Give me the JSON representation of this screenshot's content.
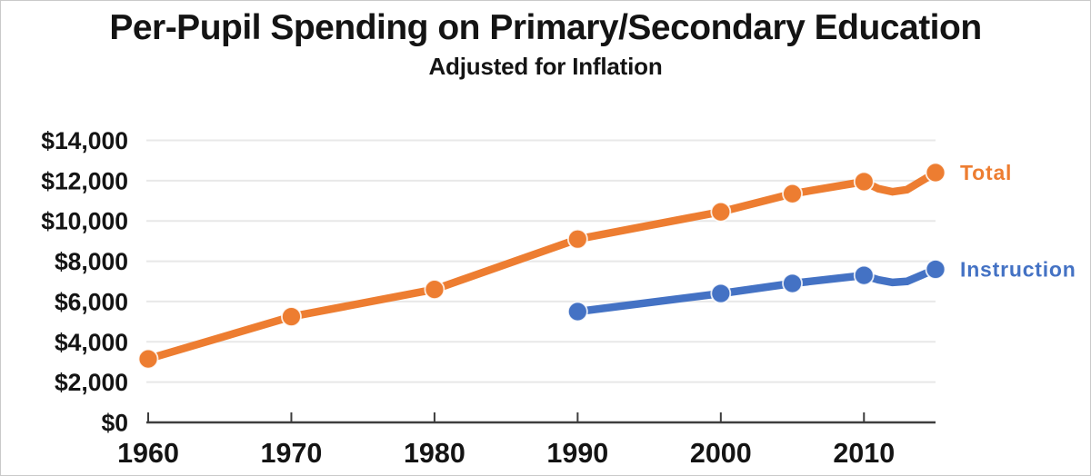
{
  "page": {
    "title": "Per-Pupil Spending on Primary/Secondary Education",
    "subtitle": "Adjusted for Inflation"
  },
  "colors": {
    "total_orange": "#ED7D31",
    "instruction_blue": "#4472C4",
    "grid": "#E8E8E8",
    "axis": "#3D3D3D",
    "text": "#141414"
  },
  "chart_data": {
    "type": "line",
    "title": "Per-Pupil Spending on Primary/Secondary Education",
    "subtitle": "Adjusted for Inflation",
    "xlabel": "",
    "ylabel": "",
    "x_range": [
      1960,
      2015
    ],
    "ylim": [
      0,
      14000
    ],
    "y_tick_step": 2000,
    "y_tick_values": [
      0,
      2000,
      4000,
      6000,
      8000,
      10000,
      12000,
      14000
    ],
    "y_tick_labels": [
      "$0",
      "$2,000",
      "$4,000",
      "$6,000",
      "$8,000",
      "$10,000",
      "$12,000",
      "$14,000"
    ],
    "x_tick_years": [
      1960,
      1970,
      1980,
      1990,
      2000,
      2010
    ],
    "x_tick_labels": [
      "1960",
      "1970",
      "1980",
      "1990",
      "2000",
      "2010"
    ],
    "grid": true,
    "legend_position": "right-of-line-end",
    "series": [
      {
        "name": "Total",
        "color": "#ED7D31",
        "points": [
          [
            1960,
            3150
          ],
          [
            1970,
            5250
          ],
          [
            1980,
            6600
          ],
          [
            1990,
            9100
          ],
          [
            2000,
            10450
          ],
          [
            2005,
            11350
          ],
          [
            2010,
            11950
          ],
          [
            2011,
            11600
          ],
          [
            2012,
            11450
          ],
          [
            2013,
            11550
          ],
          [
            2015,
            12400
          ]
        ],
        "marker_years": [
          1960,
          1970,
          1980,
          1990,
          2000,
          2005,
          2010,
          2015
        ]
      },
      {
        "name": "Instruction",
        "color": "#4472C4",
        "points": [
          [
            1990,
            5500
          ],
          [
            2000,
            6400
          ],
          [
            2005,
            6900
          ],
          [
            2010,
            7300
          ],
          [
            2011,
            7080
          ],
          [
            2012,
            6950
          ],
          [
            2013,
            7000
          ],
          [
            2015,
            7600
          ]
        ],
        "marker_years": [
          1990,
          2000,
          2005,
          2010,
          2015
        ]
      }
    ]
  }
}
